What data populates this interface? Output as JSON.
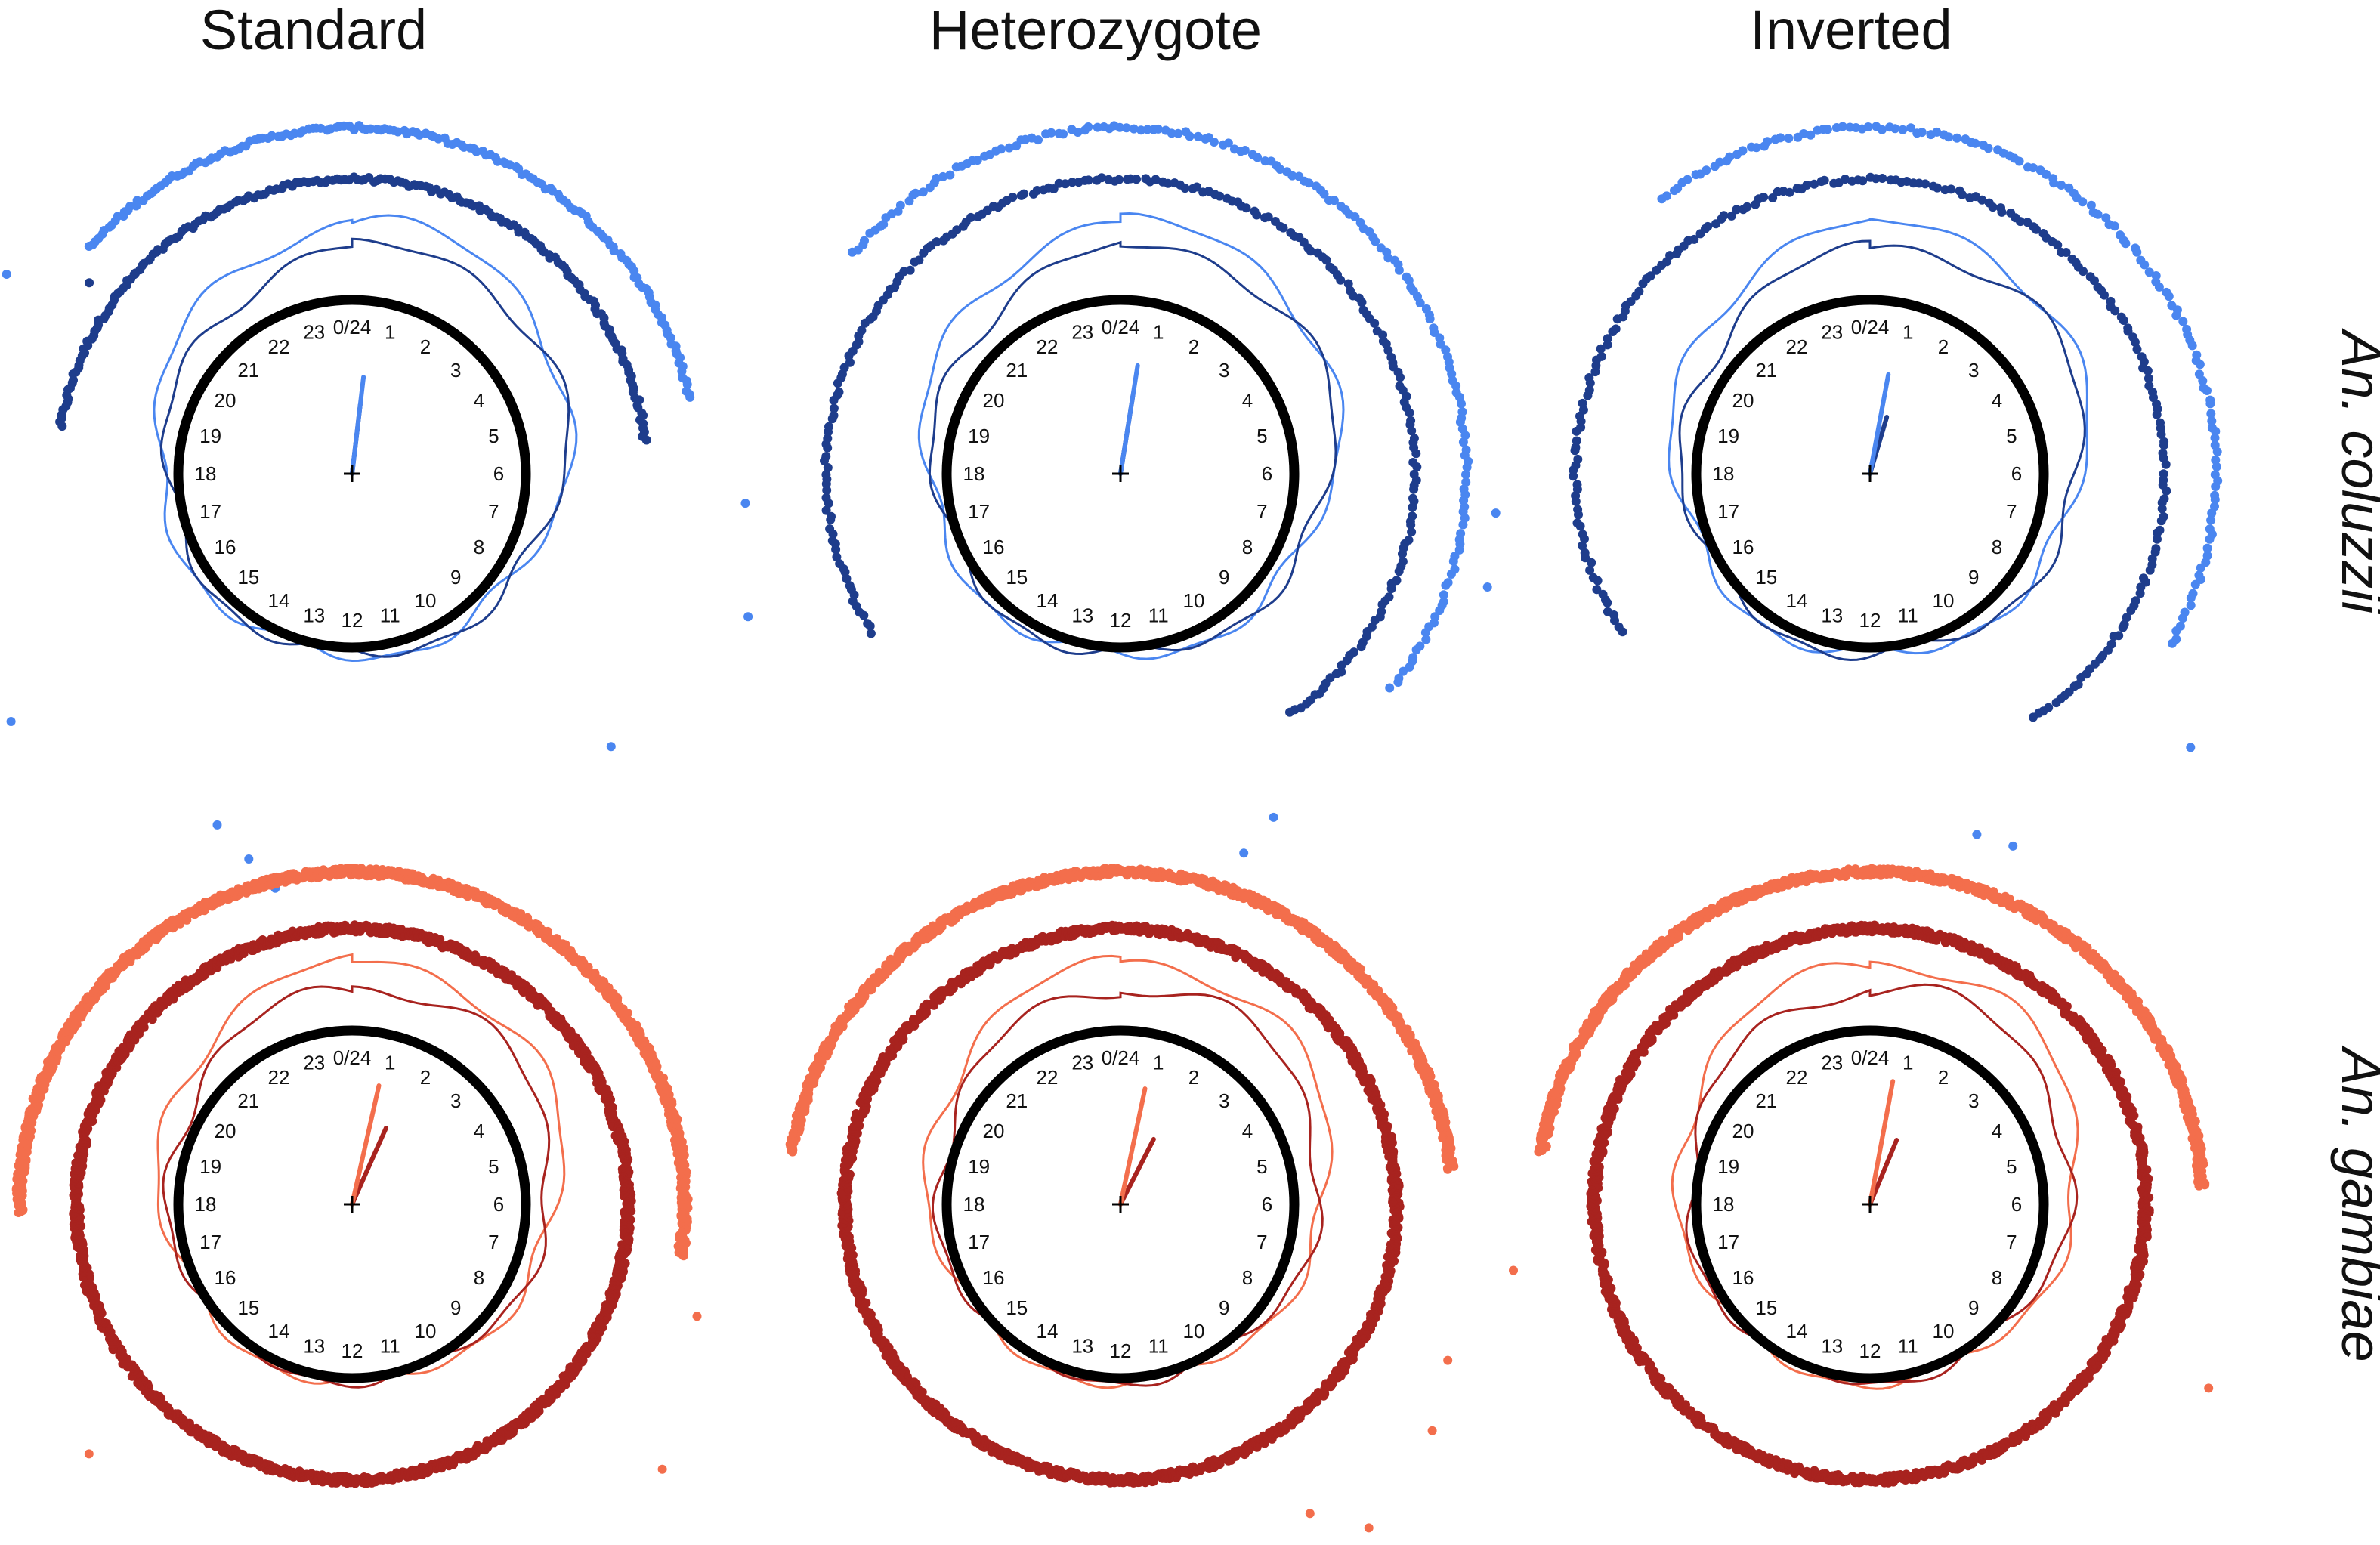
{
  "chart_data": {
    "type": "circular-scatter",
    "columns": [
      "Standard",
      "Heterozygote",
      "Inverted"
    ],
    "rows": [
      "An. coluzzii",
      "An. gambiae"
    ],
    "clock_hours": [
      "0/24",
      "1",
      "2",
      "3",
      "4",
      "5",
      "6",
      "7",
      "8",
      "9",
      "10",
      "11",
      "12",
      "13",
      "14",
      "15",
      "16",
      "17",
      "18",
      "19",
      "20",
      "21",
      "22",
      "23"
    ],
    "palettes": {
      "An. coluzzii": {
        "light": "#4a86f0",
        "dark": "#1e3d8c"
      },
      "An. gambiae": {
        "light": "#f36e4c",
        "dark": "#a8231f"
      }
    },
    "panels": [
      {
        "row": "An. coluzzii",
        "column": "Standard",
        "mean_hour_light": 0.45,
        "arrow_len_light": 0.56,
        "mean_hour_dark": 0.45,
        "arrow_len_dark": 0.4,
        "light_ring": {
          "start": 20.7,
          "end": 5.2,
          "n": 170,
          "outliers": [
            17.2,
            17.9,
            15.6,
            13.4,
            13.0,
            12.7,
            9.1,
            20.0
          ]
        },
        "dark_ring": {
          "start": 18.6,
          "end": 5.6,
          "n": 210,
          "outliers": [
            20.4
          ]
        }
      },
      {
        "row": "An. coluzzii",
        "column": "Heterozygote",
        "mean_hour_light": 0.6,
        "arrow_len_light": 0.63,
        "mean_hour_dark": 0.6,
        "arrow_len_dark": 0.46,
        "light_ring": {
          "start": 20.6,
          "end": 8.6,
          "n": 170,
          "outliers": [
            17.7,
            16.6,
            12.9,
            10.4,
            10.8
          ]
        },
        "dark_ring": {
          "start": 15.8,
          "end": 9.7,
          "n": 230,
          "outliers": []
        }
      },
      {
        "row": "An. coluzzii",
        "column": "Inverted",
        "mean_hour_light": 0.7,
        "arrow_len_light": 0.58,
        "mean_hour_dark": 1.1,
        "arrow_len_dark": 0.34,
        "light_ring": {
          "start": 21.5,
          "end": 8.0,
          "n": 140,
          "outliers": [
            17.6,
            16.9,
            12.8,
            10.9,
            10.6,
            8.7
          ]
        },
        "dark_ring": {
          "start": 15.8,
          "end": 9.8,
          "n": 220,
          "outliers": []
        }
      },
      {
        "row": "An. gambiae",
        "column": "Standard",
        "mean_hour_light": 0.85,
        "arrow_len_light": 0.7,
        "mean_hour_dark": 1.6,
        "arrow_len_dark": 0.48,
        "light_ring": {
          "start": 17.9,
          "end": 6.6,
          "n": 1100,
          "outliers": [
            15.1,
            10.4,
            10.8,
            11.2,
            12.0,
            8.7,
            7.2
          ]
        },
        "dark_ring": {
          "start": 0.0,
          "end": 24.0,
          "n": 1400,
          "outliers": []
        }
      },
      {
        "row": "An. gambiae",
        "column": "Heterozygote",
        "mean_hour_light": 0.8,
        "arrow_len_light": 0.68,
        "mean_hour_dark": 1.8,
        "arrow_len_dark": 0.42,
        "light_ring": {
          "start": 18.6,
          "end": 5.6,
          "n": 900,
          "outliers": [
            7.7,
            8.4,
            9.5,
            9.9
          ]
        },
        "dark_ring": {
          "start": 0.0,
          "end": 24.0,
          "n": 1200,
          "outliers": []
        }
      },
      {
        "row": "An. gambiae",
        "column": "Inverted",
        "mean_hour_light": 0.7,
        "arrow_len_light": 0.72,
        "mean_hour_dark": 1.5,
        "arrow_len_dark": 0.4,
        "light_ring": {
          "start": 18.6,
          "end": 5.8,
          "n": 900,
          "outliers": [
            17.3,
            7.9
          ]
        },
        "dark_ring": {
          "start": 0.0,
          "end": 24.0,
          "n": 1200,
          "outliers": []
        }
      }
    ]
  }
}
